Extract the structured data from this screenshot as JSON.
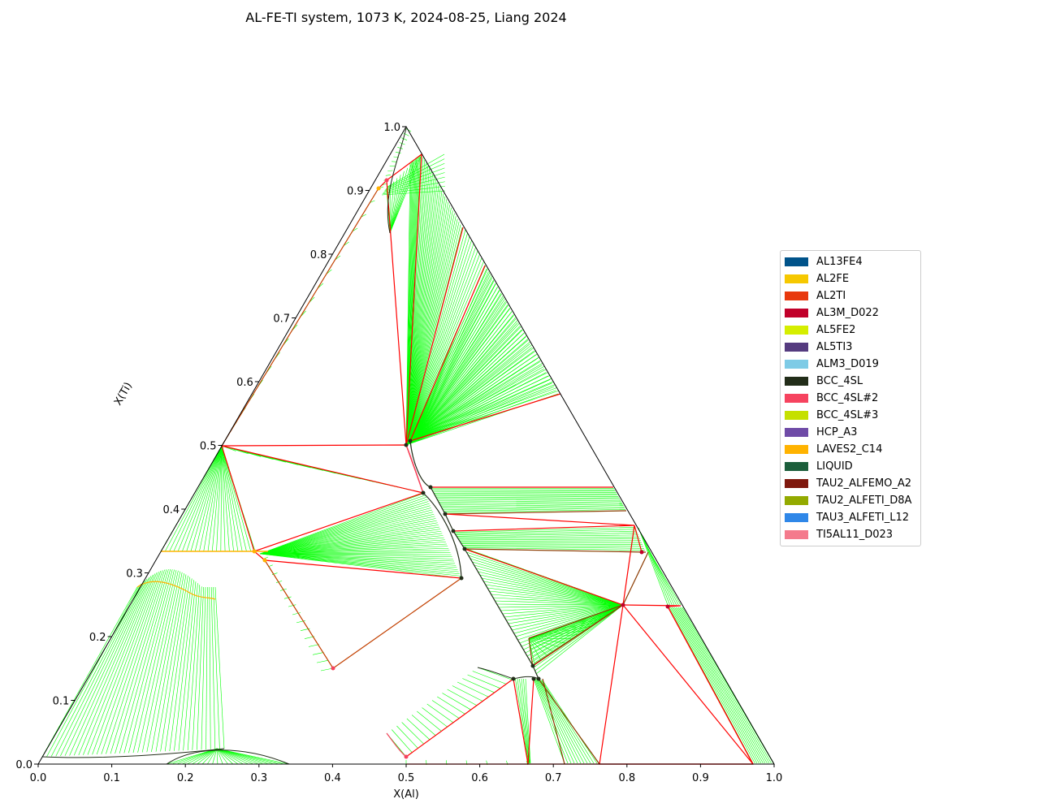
{
  "chart_data": {
    "type": "ternary phase diagram",
    "title": "AL-FE-TI system, 1073 K, 2024-08-25, Liang 2024",
    "xlabel": "X(Al)",
    "ylabel": "X(Ti)",
    "xlim": [
      0,
      1
    ],
    "ylim": [
      0,
      1
    ],
    "x_ticks": [
      "0.0",
      "0.1",
      "0.2",
      "0.3",
      "0.4",
      "0.5",
      "0.6",
      "0.7",
      "0.8",
      "0.9",
      "1.0"
    ],
    "y_ticks": [
      "0.0",
      "0.1",
      "0.2",
      "0.3",
      "0.4",
      "0.5",
      "0.6",
      "0.7",
      "0.8",
      "0.9",
      "1.0"
    ],
    "legend": {
      "placement": "right",
      "entries": [
        {
          "name": "AL13FE4",
          "color": "#00538a"
        },
        {
          "name": "AL2FE",
          "color": "#f6c800"
        },
        {
          "name": "AL2TI",
          "color": "#e8380d"
        },
        {
          "name": "AL3M_D022",
          "color": "#c1002a"
        },
        {
          "name": "AL5FE2",
          "color": "#d5ee00"
        },
        {
          "name": "AL5TI3",
          "color": "#553b7f"
        },
        {
          "name": "ALM3_D019",
          "color": "#7ecbe6"
        },
        {
          "name": "BCC_4SL",
          "color": "#222d19"
        },
        {
          "name": "BCC_4SL#2",
          "color": "#f6435f"
        },
        {
          "name": "BCC_4SL#3",
          "color": "#c5e000"
        },
        {
          "name": "HCP_A3",
          "color": "#6f4ba7"
        },
        {
          "name": "LAVES2_C14",
          "color": "#ffb300"
        },
        {
          "name": "LIQUID",
          "color": "#1b5e3b"
        },
        {
          "name": "TAU2_ALFEMO_A2",
          "color": "#7f180d"
        },
        {
          "name": "TAU2_ALFETI_D8A",
          "color": "#93aa00"
        },
        {
          "name": "TAU3_ALFETI_L12",
          "color": "#2f87e8"
        },
        {
          "name": "TI5AL11_D023",
          "color": "#f47a8c"
        }
      ]
    },
    "tie_line_color": "#00ff00",
    "tie_triangle_color": "#ff0000",
    "tie_triangles": [
      [
        [
          0.0,
          0.5
        ],
        [
          0.5,
          0.5
        ],
        [
          0.24,
          0.42
        ]
      ],
      [
        [
          0.0,
          0.5
        ],
        [
          0.3,
          0.33
        ],
        [
          0.24,
          0.42
        ]
      ],
      [
        [
          0.3,
          0.33
        ],
        [
          0.24,
          0.42
        ],
        [
          0.45,
          0.39
        ]
      ],
      [
        [
          0.31,
          0.31
        ],
        [
          0.47,
          0.29
        ],
        [
          0.16,
          0.145
        ]
      ],
      [
        [
          0.02,
          0.905
        ],
        [
          0.04,
          0.915
        ],
        [
          0.04,
          0.835
        ]
      ],
      [
        [
          0.0,
          0.5
        ],
        [
          0.02,
          0.905
        ],
        [
          0.0,
          0.5
        ]
      ],
      [
        [
          0.06,
          0.92
        ],
        [
          0.0,
          0.5
        ],
        [
          0.11,
          0.84
        ]
      ],
      [
        [
          0.0,
          0.5
        ],
        [
          0.22,
          0.77
        ],
        [
          0.11,
          0.84
        ]
      ],
      [
        [
          0.27,
          0.44
        ],
        [
          0.0,
          0.5
        ],
        [
          0.225,
          0.77
        ]
      ],
      [
        [
          0.275,
          0.44
        ],
        [
          0.6,
          0.44
        ],
        [
          0.6,
          0.44
        ]
      ],
      [
        [
          0.325,
          0.4
        ],
        [
          0.57,
          0.4
        ],
        [
          0.53,
          0.36
        ]
      ],
      [
        [
          0.345,
          0.365
        ],
        [
          0.6,
          0.38
        ],
        [
          0.66,
          0.375
        ]
      ],
      [
        [
          0.41,
          0.33
        ],
        [
          0.655,
          0.335
        ],
        [
          0.41,
          0.33
        ]
      ],
      [
        [
          0.41,
          0.33
        ],
        [
          0.64,
          0.26
        ],
        [
          0.48,
          0.19
        ]
      ],
      [
        [
          0.64,
          0.26
        ],
        [
          0.7,
          0.26
        ],
        [
          0.7,
          0.26
        ]
      ],
      [
        [
          0.64,
          0.26
        ],
        [
          0.66,
          0.335
        ],
        [
          0.68,
          0.33
        ]
      ],
      [
        [
          0.64,
          0.26
        ],
        [
          0.61,
          0.0
        ],
        [
          0.92,
          0.0
        ]
      ],
      [
        [
          0.7,
          0.26
        ],
        [
          0.92,
          0.0
        ],
        [
          0.64,
          0.26
        ]
      ],
      [
        [
          0.48,
          0.15
        ],
        [
          0.64,
          0.26
        ],
        [
          0.53,
          0.13
        ]
      ],
      [
        [
          0.53,
          0.13
        ],
        [
          0.64,
          0.26
        ],
        [
          0.61,
          0.0
        ]
      ]
    ]
  }
}
